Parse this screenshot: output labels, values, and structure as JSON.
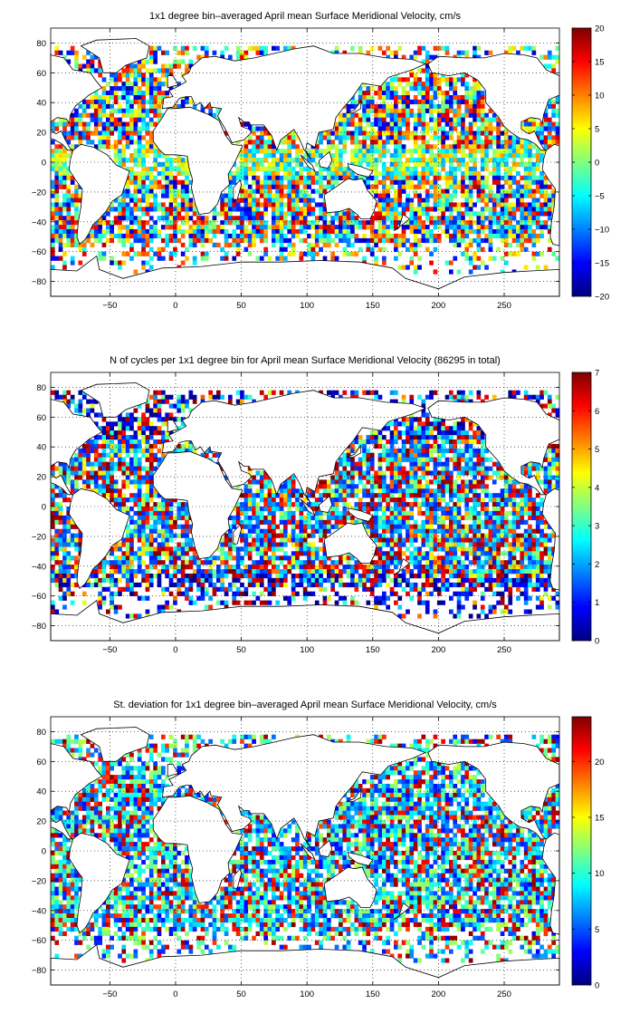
{
  "chart_data": [
    {
      "type": "heatmap",
      "title": "1x1 degree bin–averaged April mean Surface Meridional Velocity, cm/s",
      "xlim": [
        -95,
        292
      ],
      "ylim": [
        -90,
        90
      ],
      "xticks": [
        -50,
        0,
        50,
        100,
        150,
        200,
        250
      ],
      "yticks": [
        -80,
        -60,
        -40,
        -20,
        0,
        20,
        40,
        60,
        80
      ],
      "grid": true,
      "colorbar": {
        "min": -20,
        "max": 20,
        "ticks": [
          -20,
          -15,
          -10,
          -5,
          0,
          5,
          10,
          15,
          20
        ],
        "colormap": "jet"
      }
    },
    {
      "type": "heatmap",
      "title": "N of cycles per 1x1 degree bin for April mean Surface Meridional Velocity (86295 in total)",
      "xlim": [
        -95,
        292
      ],
      "ylim": [
        -90,
        90
      ],
      "xticks": [
        -50,
        0,
        50,
        100,
        150,
        200,
        250
      ],
      "yticks": [
        -80,
        -60,
        -40,
        -20,
        0,
        20,
        40,
        60,
        80
      ],
      "grid": true,
      "colorbar": {
        "min": 0,
        "max": 7,
        "ticks": [
          0,
          1,
          2,
          3,
          4,
          5,
          6,
          7
        ],
        "colormap": "jet"
      }
    },
    {
      "type": "heatmap",
      "title": "St. deviation for 1x1 degree bin–averaged April mean Surface Meridional Velocity, cm/s",
      "xlim": [
        -95,
        292
      ],
      "ylim": [
        -90,
        90
      ],
      "xticks": [
        -50,
        0,
        50,
        100,
        150,
        200,
        250
      ],
      "yticks": [
        -80,
        -60,
        -40,
        -20,
        0,
        20,
        40,
        60,
        80
      ],
      "grid": true,
      "colorbar": {
        "min": 0,
        "max": 24,
        "ticks": [
          0,
          5,
          10,
          15,
          20
        ],
        "colormap": "jet"
      }
    }
  ]
}
